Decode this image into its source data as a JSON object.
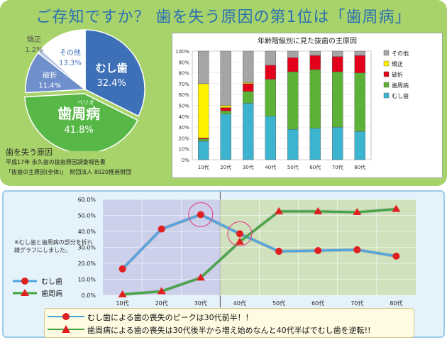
{
  "headline": "ご存知ですか？ 歯を失う原因の第1位は「歯周病」",
  "colors": {
    "top_panel": "#a8d36a",
    "perio": "#57b847",
    "caries": "#3e70b8",
    "fracture": "#6f8fcc",
    "ortho": "#b8c7e6",
    "other": "#ffffff",
    "bar_caries": "#3cb4cf",
    "bar_perio": "#5cb136",
    "bar_fracture": "#e3001b",
    "bar_ortho": "#fff200",
    "bar_other": "#a5a5a5",
    "line_caries": "#4ea3e0",
    "line_perio": "#42a542",
    "marker_caries": "#e02020",
    "marker_perio": "#e02020"
  },
  "pie": {
    "slices": [
      {
        "name": "むし歯",
        "value": 32.4,
        "label": "32.4%"
      },
      {
        "name": "歯周病",
        "ruby": "ペリオ",
        "value": 41.8,
        "label": "41.8%"
      },
      {
        "name": "破折",
        "value": 11.4,
        "label": "11.4%"
      },
      {
        "name": "矯正",
        "value": 1.2,
        "label": "1.2%"
      },
      {
        "name": "その他",
        "value": 13.3,
        "label": "13.3%"
      }
    ],
    "caption_title": "歯を失う原因",
    "caption_line1": "平成17年 永久歯の抜歯原因調査報告書",
    "caption_line2": "「抜歯の主原因(全体)」　財団法人 8020推進財団"
  },
  "chart_data": [
    {
      "type": "bar",
      "stacked": true,
      "title": "年齢階級別に見た抜歯の主原因",
      "categories": [
        "10代",
        "20代",
        "30代",
        "40代",
        "50代",
        "60代",
        "70代",
        "80代"
      ],
      "ylim": [
        0,
        100
      ],
      "yticks": [
        "0%",
        "10%",
        "20%",
        "30%",
        "40%",
        "50%",
        "60%",
        "70%",
        "80%",
        "90%",
        "100%"
      ],
      "legend_position": "right",
      "series": [
        {
          "name": "むし歯",
          "values": [
            17,
            42,
            52,
            40,
            28,
            29,
            30,
            26
          ]
        },
        {
          "name": "歯周病",
          "values": [
            2,
            3,
            11,
            34,
            53,
            54,
            51,
            54
          ]
        },
        {
          "name": "破折",
          "values": [
            1,
            3,
            7,
            13,
            13,
            13,
            14,
            16
          ]
        },
        {
          "name": "矯正",
          "values": [
            50,
            2,
            1,
            0,
            0,
            0,
            0,
            0
          ]
        },
        {
          "name": "その他",
          "values": [
            30,
            50,
            29,
            13,
            6,
            4,
            5,
            4
          ]
        }
      ]
    },
    {
      "type": "line",
      "categories": [
        "10代",
        "20代",
        "30代",
        "40代",
        "50代",
        "60代",
        "70代",
        "80代"
      ],
      "ylim": [
        0,
        60
      ],
      "yticks": [
        "0.0%",
        "10.0%",
        "20.0%",
        "30.0%",
        "40.0%",
        "50.0%",
        "60.0%"
      ],
      "legend_position": "left",
      "grid": true,
      "series": [
        {
          "name": "むし歯",
          "marker": "circle",
          "values": [
            16.5,
            41.5,
            50.5,
            38.5,
            27.5,
            28,
            28.5,
            24.5
          ]
        },
        {
          "name": "歯周病",
          "marker": "triangle",
          "values": [
            0.5,
            2.5,
            11,
            33.5,
            52.5,
            52.5,
            52,
            54
          ]
        }
      ],
      "highlighted_points": [
        {
          "series": "むし歯",
          "category": "30代"
        },
        {
          "series": "むし歯",
          "category": "40代"
        }
      ]
    }
  ],
  "note": "※むし歯と歯周病の部分を折れ線グラフにしました。",
  "callouts": [
    {
      "text": "むし歯による歯の喪失のピークは30代前半！！",
      "marker": "circle"
    },
    {
      "text": "歯周病による歯の喪失は30代後半から増え始めなんと40代半ばでむし歯を逆転!!",
      "marker": "triangle"
    }
  ]
}
